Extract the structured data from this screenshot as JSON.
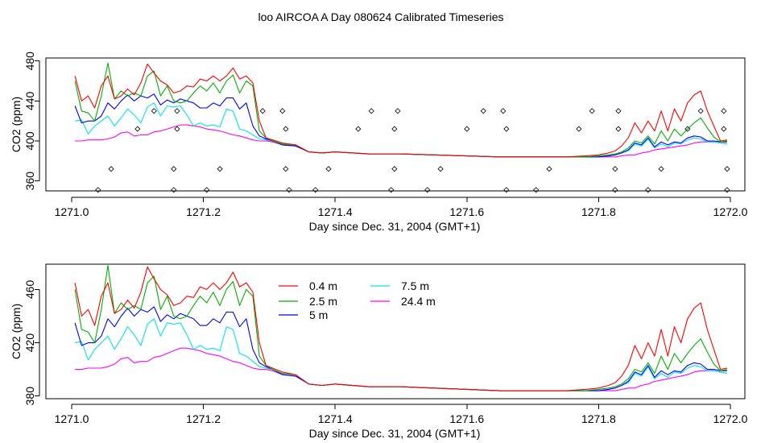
{
  "page_title": "loo AIRCOA A  Day 080624  Calibrated Timeseries",
  "chart_data": [
    {
      "type": "scatter+line",
      "title": "",
      "xlabel": "Day since Dec. 31, 2004 (GMT+1)",
      "ylabel": "CO2 (ppm)",
      "xlim": [
        1271.0,
        1272.0
      ],
      "ylim": [
        350,
        483
      ],
      "xticks": [
        "1271.0",
        "1271.2",
        "1271.4",
        "1271.6",
        "1271.8",
        "1272.0"
      ],
      "yticks": [
        "360",
        "400",
        "440",
        "480"
      ],
      "colors": [
        "#ff0000",
        "#00b000",
        "#0000ff",
        "#00e5ee",
        "#ff00ff"
      ],
      "legend": "none",
      "calibration_points": {
        "x": [
          1271.04,
          1271.06,
          1271.1,
          1271.125,
          1271.155,
          1271.155,
          1271.16,
          1271.16,
          1271.205,
          1271.225,
          1271.29,
          1271.32,
          1271.325,
          1271.325,
          1271.33,
          1271.37,
          1271.39,
          1271.435,
          1271.455,
          1271.485,
          1271.49,
          1271.49,
          1271.495,
          1271.54,
          1271.56,
          1271.6,
          1271.625,
          1271.655,
          1271.66,
          1271.66,
          1271.705,
          1271.725,
          1271.77,
          1271.79,
          1271.825,
          1271.825,
          1271.83,
          1271.83,
          1271.875,
          1271.895,
          1271.935,
          1271.955,
          1271.99,
          1271.99,
          1271.995,
          1271.995
        ],
        "y": [
          351,
          372,
          412,
          430,
          351,
          372,
          412,
          430,
          351,
          372,
          430,
          430,
          412,
          372,
          351,
          351,
          372,
          412,
          430,
          351,
          372,
          412,
          430,
          351,
          372,
          412,
          430,
          430,
          412,
          351,
          351,
          372,
          412,
          430,
          351,
          372,
          412,
          430,
          351,
          372,
          412,
          430,
          430,
          412,
          372,
          351
        ]
      },
      "series": [
        {
          "name": "0.4 m",
          "x": [
            1271.005,
            1271.015,
            1271.025,
            1271.035,
            1271.045,
            1271.055,
            1271.065,
            1271.075,
            1271.085,
            1271.095,
            1271.105,
            1271.115,
            1271.125,
            1271.135,
            1271.145,
            1271.155,
            1271.165,
            1271.175,
            1271.185,
            1271.195,
            1271.205,
            1271.215,
            1271.225,
            1271.235,
            1271.245,
            1271.255,
            1271.265,
            1271.275,
            1271.285,
            1271.295,
            1271.305,
            1271.32,
            1271.34,
            1271.36,
            1271.38,
            1271.4,
            1271.45,
            1271.5,
            1271.55,
            1271.6,
            1271.65,
            1271.7,
            1271.75,
            1271.78,
            1271.8,
            1271.815,
            1271.825,
            1271.835,
            1271.845,
            1271.855,
            1271.865,
            1271.875,
            1271.885,
            1271.895,
            1271.905,
            1271.915,
            1271.925,
            1271.935,
            1271.945,
            1271.955,
            1271.965,
            1271.975,
            1271.985,
            1271.995
          ],
          "y": [
            465,
            440,
            445,
            433,
            455,
            465,
            442,
            445,
            452,
            446,
            458,
            477,
            468,
            460,
            456,
            448,
            450,
            455,
            454,
            462,
            460,
            465,
            460,
            465,
            473,
            462,
            465,
            458,
            420,
            403,
            401,
            398,
            396,
            389,
            388,
            389,
            387,
            387,
            386,
            385,
            384,
            384,
            384,
            385,
            386,
            388,
            390,
            395,
            403,
            418,
            408,
            420,
            410,
            430,
            410,
            432,
            420,
            438,
            446,
            450,
            430,
            415,
            400,
            401
          ]
        },
        {
          "name": "2.5 m",
          "x": [
            1271.005,
            1271.015,
            1271.025,
            1271.035,
            1271.045,
            1271.055,
            1271.065,
            1271.075,
            1271.085,
            1271.095,
            1271.105,
            1271.115,
            1271.125,
            1271.135,
            1271.145,
            1271.155,
            1271.165,
            1271.175,
            1271.185,
            1271.195,
            1271.205,
            1271.215,
            1271.225,
            1271.235,
            1271.245,
            1271.255,
            1271.265,
            1271.275,
            1271.285,
            1271.295,
            1271.305,
            1271.32,
            1271.34,
            1271.36,
            1271.38,
            1271.4,
            1271.45,
            1271.5,
            1271.55,
            1271.6,
            1271.65,
            1271.7,
            1271.75,
            1271.78,
            1271.8,
            1271.815,
            1271.825,
            1271.835,
            1271.845,
            1271.855,
            1271.865,
            1271.875,
            1271.885,
            1271.895,
            1271.905,
            1271.915,
            1271.925,
            1271.935,
            1271.945,
            1271.955,
            1271.965,
            1271.975,
            1271.985,
            1271.995
          ],
          "y": [
            460,
            430,
            428,
            420,
            445,
            478,
            442,
            450,
            445,
            448,
            445,
            465,
            470,
            445,
            455,
            440,
            438,
            440,
            448,
            455,
            450,
            458,
            448,
            460,
            466,
            448,
            460,
            455,
            410,
            403,
            400,
            397,
            396,
            389,
            388,
            389,
            387,
            387,
            386,
            385,
            384,
            384,
            384,
            384,
            385,
            386,
            387,
            389,
            393,
            400,
            398,
            405,
            397,
            410,
            400,
            412,
            405,
            412,
            418,
            423,
            413,
            404,
            399,
            400
          ]
        },
        {
          "name": "5 m",
          "x": [
            1271.005,
            1271.015,
            1271.025,
            1271.035,
            1271.045,
            1271.055,
            1271.065,
            1271.075,
            1271.085,
            1271.095,
            1271.105,
            1271.115,
            1271.125,
            1271.135,
            1271.145,
            1271.155,
            1271.165,
            1271.175,
            1271.185,
            1271.195,
            1271.205,
            1271.215,
            1271.225,
            1271.235,
            1271.245,
            1271.255,
            1271.265,
            1271.275,
            1271.285,
            1271.295,
            1271.305,
            1271.32,
            1271.34,
            1271.36,
            1271.38,
            1271.4,
            1271.45,
            1271.5,
            1271.55,
            1271.6,
            1271.65,
            1271.7,
            1271.75,
            1271.78,
            1271.8,
            1271.815,
            1271.825,
            1271.835,
            1271.845,
            1271.855,
            1271.865,
            1271.875,
            1271.885,
            1271.895,
            1271.905,
            1271.915,
            1271.925,
            1271.935,
            1271.945,
            1271.955,
            1271.965,
            1271.975,
            1271.985,
            1271.995
          ],
          "y": [
            435,
            418,
            420,
            420,
            425,
            438,
            432,
            440,
            446,
            440,
            445,
            443,
            447,
            436,
            441,
            438,
            442,
            440,
            438,
            433,
            433,
            438,
            435,
            443,
            443,
            432,
            438,
            415,
            405,
            402,
            400,
            396,
            395,
            389,
            388,
            389,
            387,
            387,
            386,
            385,
            384,
            384,
            384,
            384,
            384,
            385,
            386,
            388,
            391,
            398,
            396,
            403,
            394,
            399,
            396,
            399,
            398,
            403,
            405,
            404,
            400,
            400,
            399,
            399
          ]
        },
        {
          "name": "7.5 m",
          "x": [
            1271.005,
            1271.015,
            1271.025,
            1271.035,
            1271.045,
            1271.055,
            1271.065,
            1271.075,
            1271.085,
            1271.095,
            1271.105,
            1271.115,
            1271.125,
            1271.135,
            1271.145,
            1271.155,
            1271.165,
            1271.175,
            1271.185,
            1271.195,
            1271.205,
            1271.215,
            1271.225,
            1271.235,
            1271.245,
            1271.255,
            1271.265,
            1271.275,
            1271.285,
            1271.295,
            1271.305,
            1271.32,
            1271.34,
            1271.36,
            1271.38,
            1271.4,
            1271.45,
            1271.5,
            1271.55,
            1271.6,
            1271.65,
            1271.7,
            1271.75,
            1271.78,
            1271.8,
            1271.815,
            1271.825,
            1271.835,
            1271.845,
            1271.855,
            1271.865,
            1271.875,
            1271.885,
            1271.895,
            1271.905,
            1271.915,
            1271.925,
            1271.935,
            1271.945,
            1271.955,
            1271.965,
            1271.975,
            1271.985,
            1271.995
          ],
          "y": [
            420,
            421,
            407,
            415,
            420,
            425,
            415,
            423,
            432,
            426,
            418,
            434,
            438,
            425,
            435,
            434,
            435,
            426,
            415,
            418,
            415,
            416,
            414,
            432,
            430,
            412,
            410,
            406,
            402,
            401,
            400,
            396,
            395,
            389,
            388,
            389,
            387,
            387,
            386,
            385,
            384,
            384,
            384,
            384,
            384,
            385,
            386,
            388,
            390,
            397,
            395,
            402,
            393,
            397,
            394,
            398,
            397,
            401,
            403,
            402,
            399,
            399,
            398,
            397
          ]
        },
        {
          "name": "24.4 m",
          "x": [
            1271.005,
            1271.015,
            1271.025,
            1271.035,
            1271.045,
            1271.055,
            1271.065,
            1271.075,
            1271.085,
            1271.095,
            1271.105,
            1271.115,
            1271.125,
            1271.135,
            1271.145,
            1271.155,
            1271.165,
            1271.175,
            1271.185,
            1271.195,
            1271.205,
            1271.215,
            1271.225,
            1271.235,
            1271.245,
            1271.255,
            1271.265,
            1271.275,
            1271.285,
            1271.295,
            1271.305,
            1271.32,
            1271.34,
            1271.36,
            1271.38,
            1271.4,
            1271.45,
            1271.5,
            1271.55,
            1271.6,
            1271.65,
            1271.7,
            1271.75,
            1271.78,
            1271.8,
            1271.815,
            1271.825,
            1271.835,
            1271.845,
            1271.855,
            1271.865,
            1271.875,
            1271.885,
            1271.895,
            1271.905,
            1271.915,
            1271.925,
            1271.935,
            1271.945,
            1271.955,
            1271.965,
            1271.975,
            1271.985,
            1271.995
          ],
          "y": [
            400,
            400,
            401,
            401,
            401,
            402,
            404,
            408,
            409,
            405,
            406,
            406,
            409,
            410,
            412,
            414,
            416,
            416,
            415,
            414,
            412,
            411,
            410,
            408,
            406,
            405,
            403,
            401,
            400,
            400,
            399,
            396,
            395,
            389,
            388,
            389,
            387,
            387,
            386,
            385,
            384,
            384,
            384,
            384,
            384,
            384,
            384,
            385,
            386,
            386,
            388,
            389,
            391,
            392,
            393,
            394,
            395,
            396,
            398,
            399,
            399,
            399,
            398,
            397
          ]
        }
      ]
    },
    {
      "type": "line",
      "title": "",
      "xlabel": "Day since Dec. 31, 2004 (GMT+1)",
      "ylabel": "CO2 (ppm)",
      "xlim": [
        1271.0,
        1272.0
      ],
      "ylim": [
        378,
        479
      ],
      "xticks": [
        "1271.0",
        "1271.2",
        "1271.4",
        "1271.6",
        "1271.8",
        "1272.0"
      ],
      "yticks": [
        "380",
        "420",
        "460"
      ],
      "colors": [
        "#ff0000",
        "#00b000",
        "#0000ff",
        "#00e5ee",
        "#ff00ff"
      ],
      "legend": "top-center",
      "legend_labels": [
        "0.4 m",
        "2.5 m",
        "5 m",
        "7.5 m",
        "24.4 m"
      ],
      "series_ref": "same series as chart 1"
    }
  ]
}
